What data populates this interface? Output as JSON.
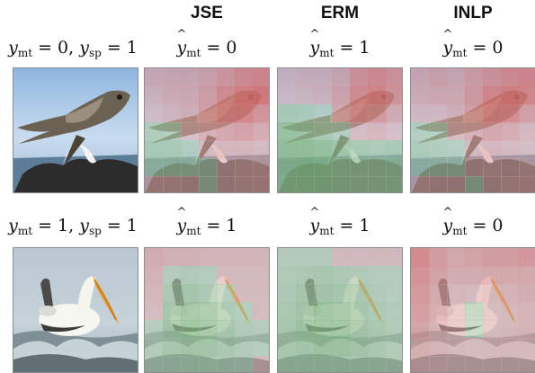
{
  "columns": [
    "JSE",
    "ERM",
    "INLP"
  ],
  "rows": [
    {
      "true_label": {
        "y_mt": "0",
        "y_sp": "1"
      },
      "preds": [
        "0",
        "1",
        "0"
      ],
      "photo": "nighthawk-bird-on-rocky-shore",
      "heatmaps": [
        [
          [
            0.15,
            0.2,
            0.2,
            0.25,
            0.35,
            0.45,
            0.5
          ],
          [
            0.1,
            0.15,
            0.2,
            0.3,
            0.45,
            0.55,
            0.6
          ],
          [
            0.0,
            0.1,
            0.15,
            0.3,
            0.45,
            0.5,
            0.4
          ],
          [
            -0.15,
            -0.1,
            0.0,
            0.15,
            0.25,
            0.3,
            0.2
          ],
          [
            -0.2,
            -0.2,
            -0.1,
            0.05,
            0.1,
            0.1,
            0.05
          ],
          [
            -0.15,
            -0.2,
            -0.15,
            -0.05,
            0.0,
            0.05,
            0.1
          ],
          [
            0.1,
            0.05,
            0.0,
            -0.05,
            0.0,
            0.05,
            0.1
          ]
        ],
        [
          [
            0.05,
            0.1,
            0.1,
            0.2,
            0.4,
            0.45,
            0.4
          ],
          [
            0.0,
            0.05,
            0.1,
            0.25,
            0.45,
            0.5,
            0.4
          ],
          [
            -0.2,
            -0.15,
            -0.05,
            0.2,
            0.4,
            0.35,
            0.2
          ],
          [
            -0.4,
            -0.35,
            -0.25,
            -0.1,
            0.05,
            0.1,
            0.0
          ],
          [
            -0.45,
            -0.45,
            -0.4,
            -0.3,
            -0.2,
            -0.15,
            -0.2
          ],
          [
            -0.45,
            -0.5,
            -0.45,
            -0.35,
            -0.3,
            -0.25,
            -0.3
          ],
          [
            -0.4,
            -0.45,
            -0.4,
            -0.35,
            -0.3,
            -0.3,
            -0.35
          ]
        ],
        [
          [
            0.2,
            0.25,
            0.2,
            0.3,
            0.4,
            0.45,
            0.5
          ],
          [
            0.15,
            0.2,
            0.2,
            0.35,
            0.5,
            0.55,
            0.5
          ],
          [
            0.05,
            0.05,
            0.15,
            0.3,
            0.45,
            0.45,
            0.3
          ],
          [
            -0.1,
            -0.05,
            0.05,
            0.15,
            0.25,
            0.2,
            0.1
          ],
          [
            -0.15,
            -0.1,
            -0.05,
            0.05,
            0.1,
            0.05,
            0.0
          ],
          [
            -0.1,
            -0.1,
            -0.05,
            0.0,
            0.05,
            0.0,
            0.05
          ],
          [
            0.05,
            0.0,
            0.0,
            -0.05,
            0.0,
            0.05,
            0.1
          ]
        ]
      ]
    },
    {
      "true_label": {
        "y_mt": "1",
        "y_sp": "1"
      },
      "preds": [
        "1",
        "1",
        "0"
      ],
      "photo": "white-pelican-on-waves",
      "heatmaps": [
        [
          [
            0.15,
            0.1,
            0.1,
            0.05,
            0.05,
            0.05,
            0.05
          ],
          [
            0.1,
            -0.05,
            -0.1,
            -0.05,
            0.0,
            0.0,
            0.0
          ],
          [
            0.05,
            -0.15,
            -0.25,
            -0.15,
            -0.05,
            0.0,
            0.0
          ],
          [
            0.0,
            -0.25,
            -0.35,
            -0.3,
            -0.15,
            -0.05,
            0.0
          ],
          [
            -0.05,
            -0.3,
            -0.4,
            -0.35,
            -0.25,
            -0.1,
            -0.05
          ],
          [
            -0.1,
            -0.25,
            -0.3,
            -0.3,
            -0.2,
            -0.1,
            -0.05
          ],
          [
            -0.05,
            -0.1,
            -0.15,
            -0.15,
            -0.1,
            -0.05,
            0.0
          ]
        ],
        [
          [
            -0.05,
            -0.05,
            -0.05,
            0.0,
            0.0,
            0.0,
            0.0
          ],
          [
            -0.1,
            -0.15,
            -0.2,
            -0.15,
            -0.1,
            -0.05,
            -0.05
          ],
          [
            -0.15,
            -0.25,
            -0.3,
            -0.25,
            -0.2,
            -0.1,
            -0.05
          ],
          [
            -0.2,
            -0.3,
            -0.4,
            -0.35,
            -0.25,
            -0.15,
            -0.1
          ],
          [
            -0.25,
            -0.35,
            -0.4,
            -0.4,
            -0.3,
            -0.2,
            -0.1
          ],
          [
            -0.25,
            -0.3,
            -0.35,
            -0.35,
            -0.3,
            -0.2,
            -0.1
          ],
          [
            -0.2,
            -0.25,
            -0.25,
            -0.25,
            -0.2,
            -0.15,
            -0.1
          ]
        ],
        [
          [
            0.45,
            0.3,
            0.2,
            0.25,
            0.3,
            0.3,
            0.35
          ],
          [
            0.4,
            0.25,
            0.15,
            0.15,
            0.2,
            0.2,
            0.2
          ],
          [
            0.35,
            0.2,
            0.05,
            0.0,
            0.05,
            0.1,
            0.15
          ],
          [
            0.3,
            0.15,
            0.0,
            -0.1,
            0.0,
            0.05,
            0.1
          ],
          [
            0.25,
            0.1,
            0.0,
            -0.05,
            0.0,
            0.05,
            0.1
          ],
          [
            0.15,
            0.1,
            0.05,
            0.0,
            0.05,
            0.05,
            0.05
          ],
          [
            0.1,
            0.05,
            0.0,
            0.0,
            0.0,
            0.0,
            0.0
          ]
        ]
      ]
    }
  ]
}
